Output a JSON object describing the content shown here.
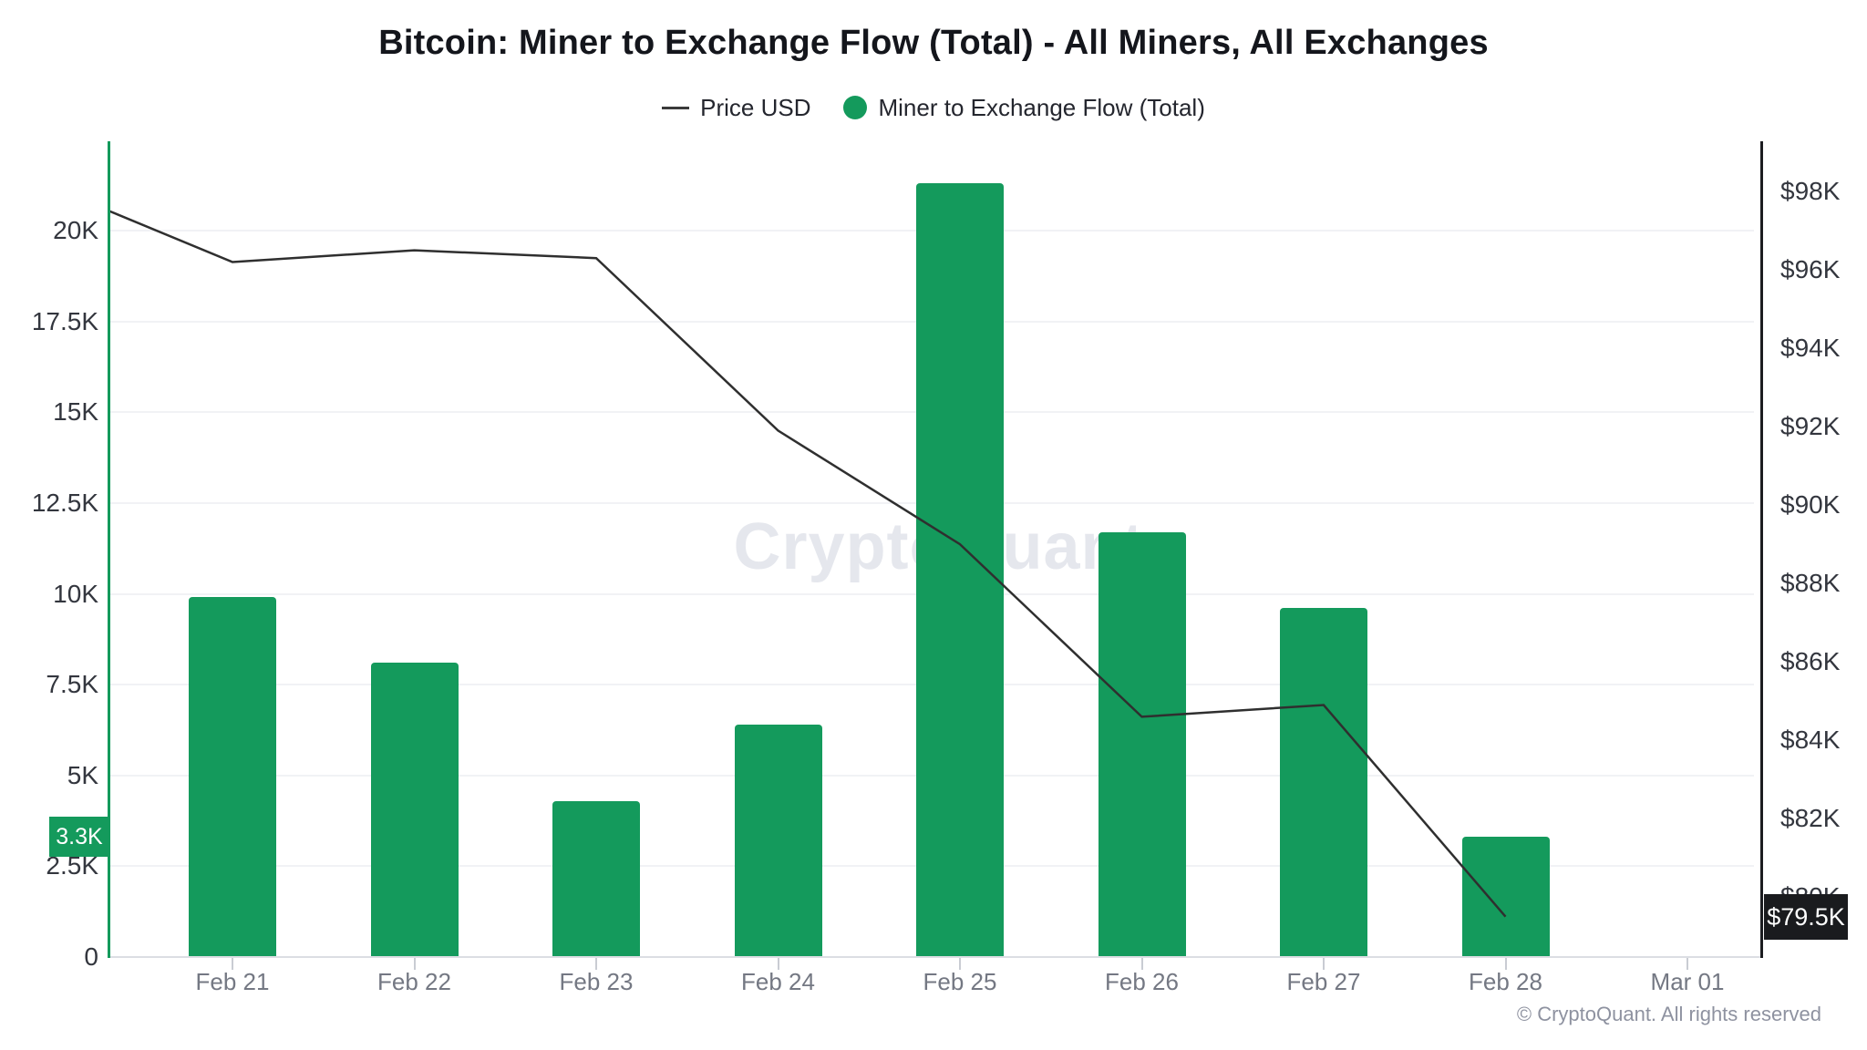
{
  "page": {
    "watermark": "CryptoQuant",
    "copyright": "© CryptoQuant. All rights reserved"
  },
  "legend": {
    "items": [
      {
        "label": "Price USD",
        "marker": "line",
        "color": "#3a3a3a"
      },
      {
        "label": "Miner to Exchange Flow (Total)",
        "marker": "dot",
        "color": "#149a5c"
      }
    ]
  },
  "chart_data": {
    "type": "combo",
    "title": "Bitcoin: Miner to Exchange Flow (Total) - All Miners, All Exchanges",
    "categories": [
      "Feb 21",
      "Feb 22",
      "Feb 23",
      "Feb 24",
      "Feb 25",
      "Feb 26",
      "Feb 27",
      "Feb 28",
      "Mar 01"
    ],
    "series": [
      {
        "name": "Miner to Exchange Flow (Total)",
        "type": "bar",
        "axis": "left",
        "color": "#149a5c",
        "values": [
          9900,
          8100,
          4300,
          6400,
          21300,
          11700,
          9600,
          3300,
          null
        ]
      },
      {
        "name": "Price USD",
        "type": "line",
        "axis": "right",
        "color": "#2f2f2f",
        "edge_start_value": 97500,
        "values": [
          96200,
          96500,
          96300,
          91900,
          89000,
          84600,
          84900,
          79500,
          null
        ]
      }
    ],
    "left_axis": {
      "unit": "BTC",
      "range": [
        0,
        22460
      ],
      "ticks": [
        {
          "v": 0,
          "label": "0"
        },
        {
          "v": 2500,
          "label": "2.5K"
        },
        {
          "v": 5000,
          "label": "5K"
        },
        {
          "v": 7500,
          "label": "7.5K"
        },
        {
          "v": 10000,
          "label": "10K"
        },
        {
          "v": 12500,
          "label": "12.5K"
        },
        {
          "v": 15000,
          "label": "15K"
        },
        {
          "v": 17500,
          "label": "17.5K"
        },
        {
          "v": 20000,
          "label": "20K"
        }
      ],
      "highlight_badge": {
        "value": 3300,
        "label": "3.3K",
        "color": "#149a5c"
      }
    },
    "right_axis": {
      "unit": "USD",
      "range": [
        78470,
        99280
      ],
      "ticks": [
        {
          "v": 80000,
          "label": "$80K"
        },
        {
          "v": 82000,
          "label": "$82K"
        },
        {
          "v": 84000,
          "label": "$84K"
        },
        {
          "v": 86000,
          "label": "$86K"
        },
        {
          "v": 88000,
          "label": "$88K"
        },
        {
          "v": 90000,
          "label": "$90K"
        },
        {
          "v": 92000,
          "label": "$92K"
        },
        {
          "v": 94000,
          "label": "$94K"
        },
        {
          "v": 96000,
          "label": "$96K"
        },
        {
          "v": 98000,
          "label": "$98K"
        }
      ],
      "last_badge": {
        "value": 79500,
        "label": "$79.5K",
        "background": "#1a1b1e"
      }
    },
    "grid": true,
    "legend_position": "top"
  }
}
